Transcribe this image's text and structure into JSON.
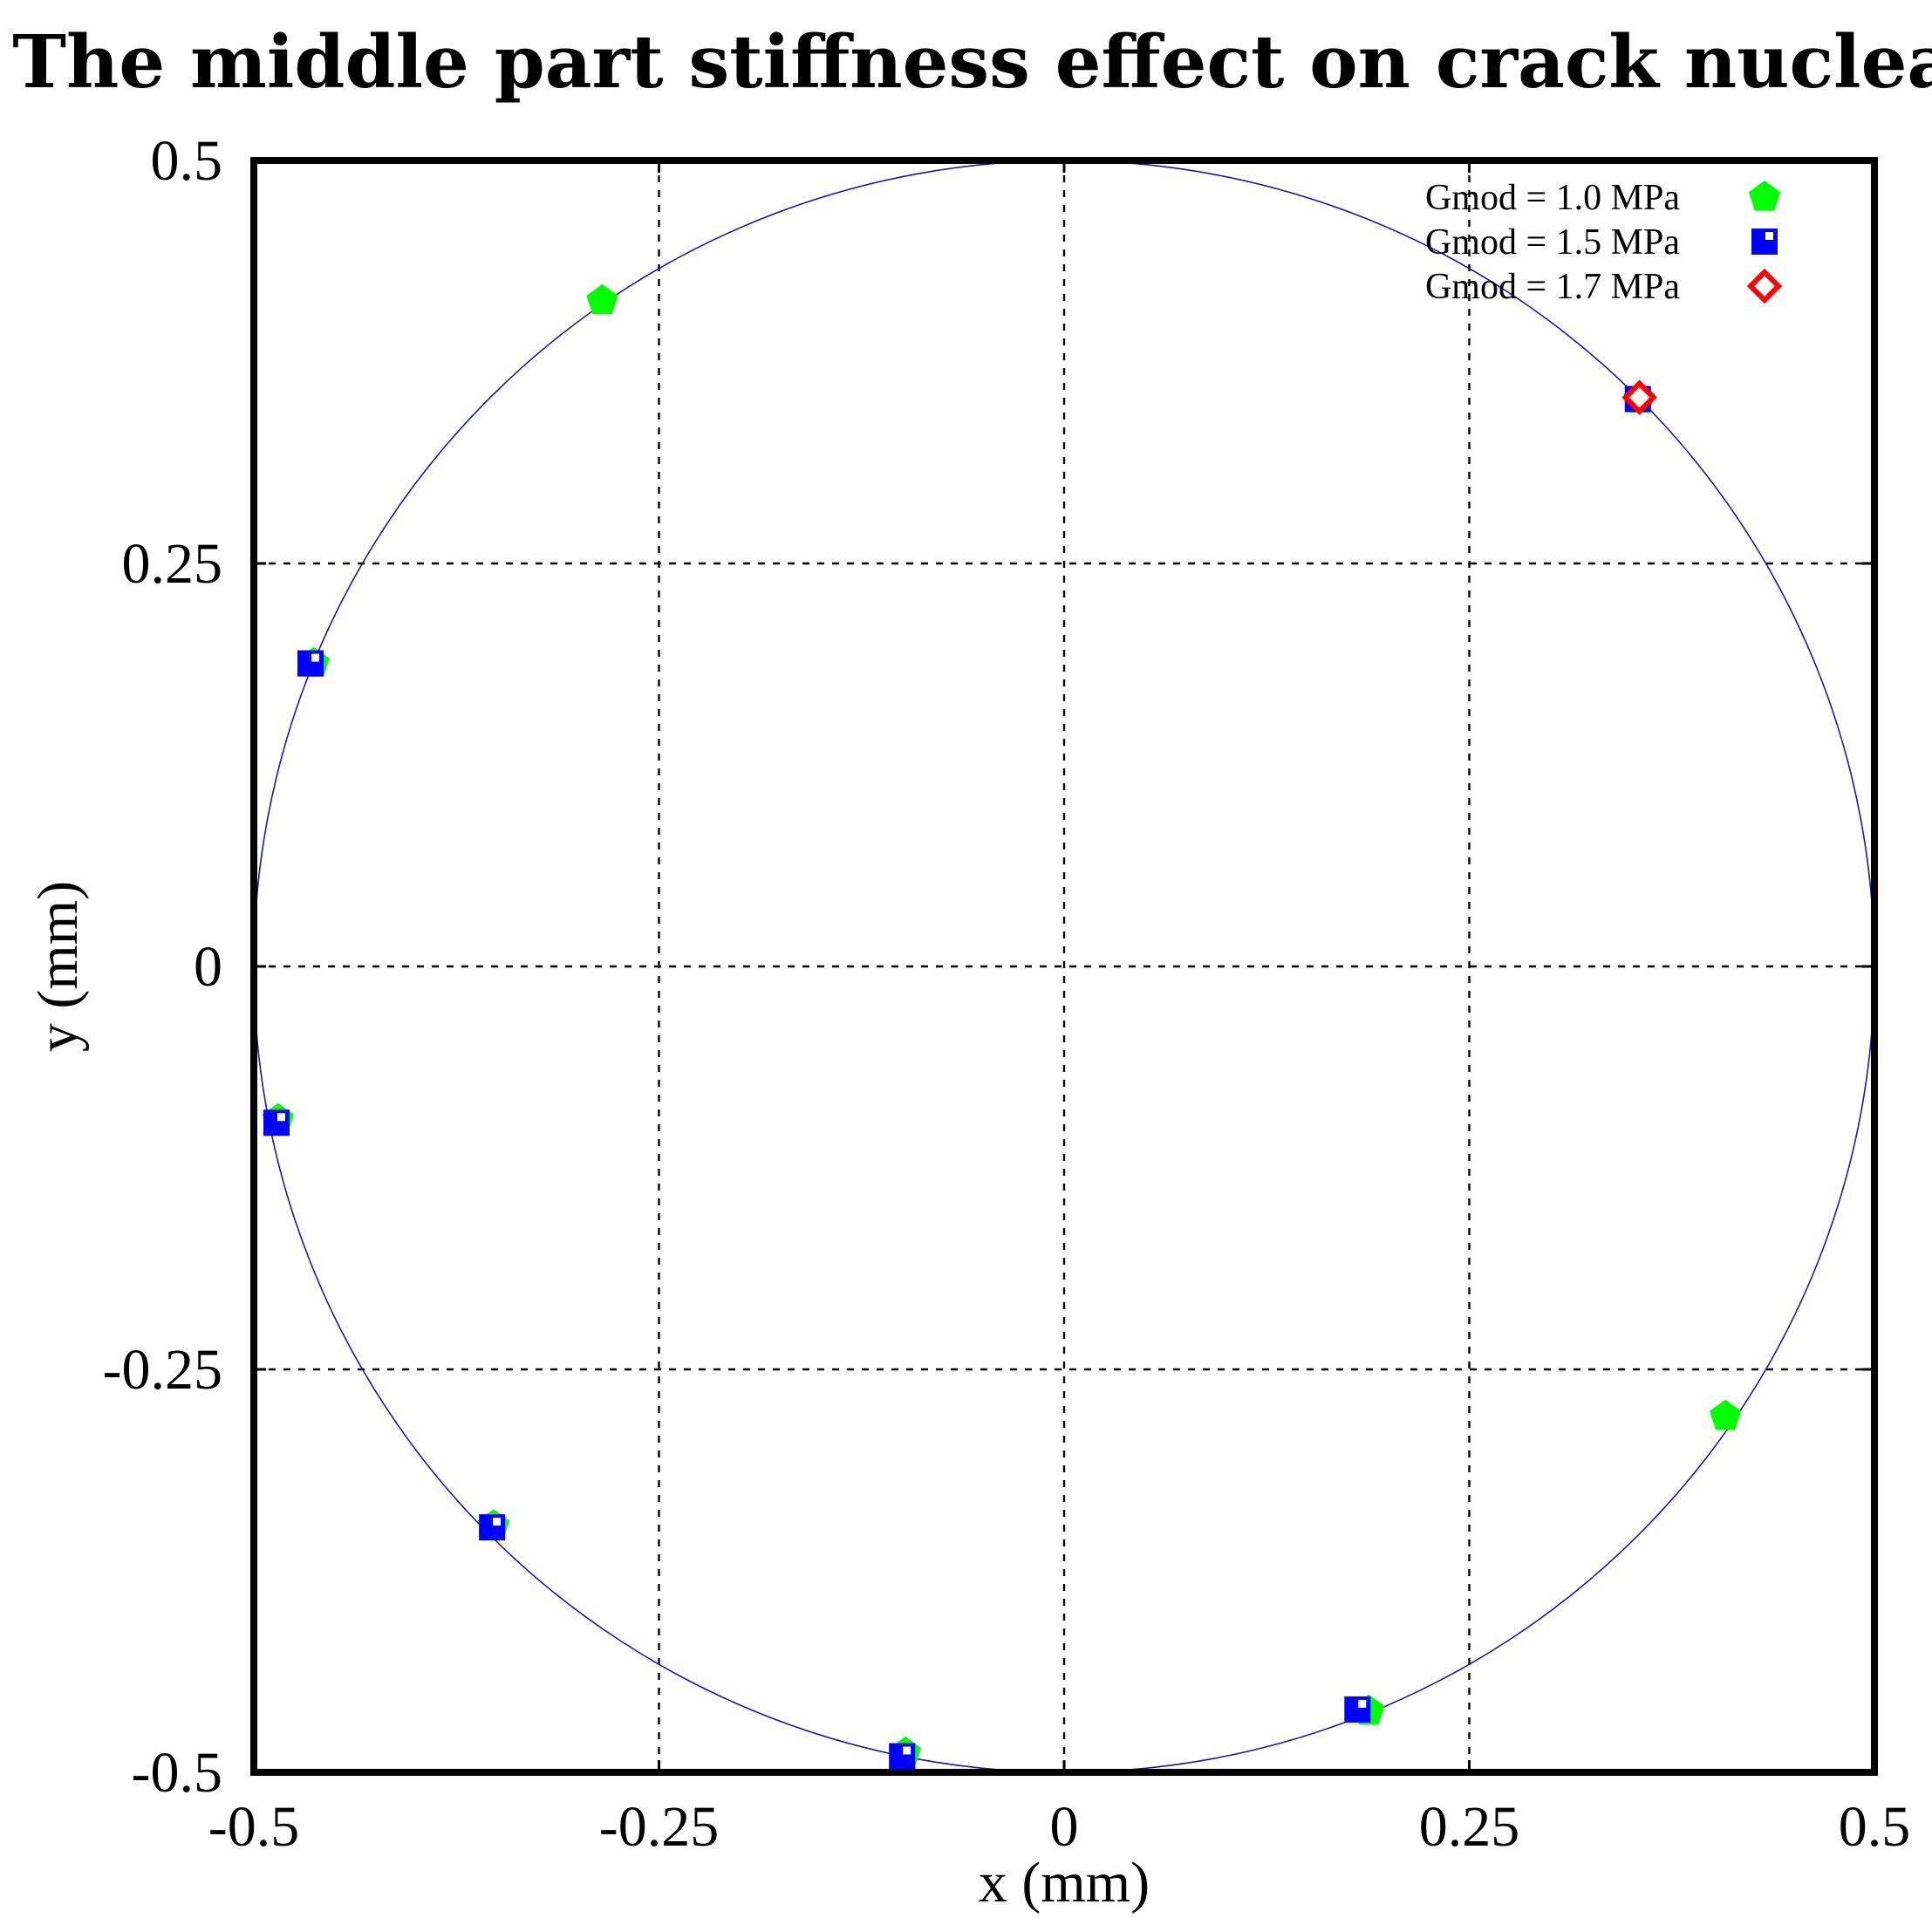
{
  "chart_data": {
    "type": "scatter",
    "title": "The middle part stiffness effect on crack nucleation",
    "xlabel": "x (mm)",
    "ylabel": "y (mm)",
    "xlim": [
      -0.5,
      0.5
    ],
    "ylim": [
      -0.5,
      0.5
    ],
    "x_ticks": [
      -0.5,
      -0.25,
      0,
      0.25,
      0.5
    ],
    "y_ticks": [
      -0.5,
      -0.25,
      0,
      0.25,
      0.5
    ],
    "x_tick_labels": [
      "-0.5",
      "-0.25",
      "0",
      "0.25",
      "0.5"
    ],
    "y_tick_labels": [
      "-0.5",
      "-0.25",
      "0",
      "0.25",
      "0.5"
    ],
    "grid": true,
    "legend_position": "top-right",
    "reference_circle": {
      "center": [
        0,
        0
      ],
      "radius": 0.5,
      "color": "#1a1aa6"
    },
    "series": [
      {
        "name": "Gmod = 1.0 MPa",
        "marker": "pentagon",
        "color": "#00ff00",
        "points": [
          [
            -0.285,
            0.413
          ],
          [
            -0.463,
            0.188
          ],
          [
            -0.485,
            -0.095
          ],
          [
            -0.352,
            -0.347
          ],
          [
            -0.098,
            -0.488
          ],
          [
            0.188,
            -0.462
          ],
          [
            0.408,
            -0.279
          ],
          [
            0.355,
            0.352
          ]
        ]
      },
      {
        "name": "Gmod = 1.5 MPa",
        "marker": "square-inner-square",
        "color": "#0000ff",
        "points": [
          [
            -0.465,
            0.188
          ],
          [
            -0.486,
            -0.097
          ],
          [
            -0.353,
            -0.348
          ],
          [
            -0.1,
            -0.49
          ],
          [
            0.181,
            -0.461
          ],
          [
            0.354,
            0.352
          ]
        ]
      },
      {
        "name": "Gmod = 1.7 MPa",
        "marker": "diamond-open",
        "color": "#ff0000",
        "points": [
          [
            0.355,
            0.353
          ]
        ]
      }
    ]
  }
}
